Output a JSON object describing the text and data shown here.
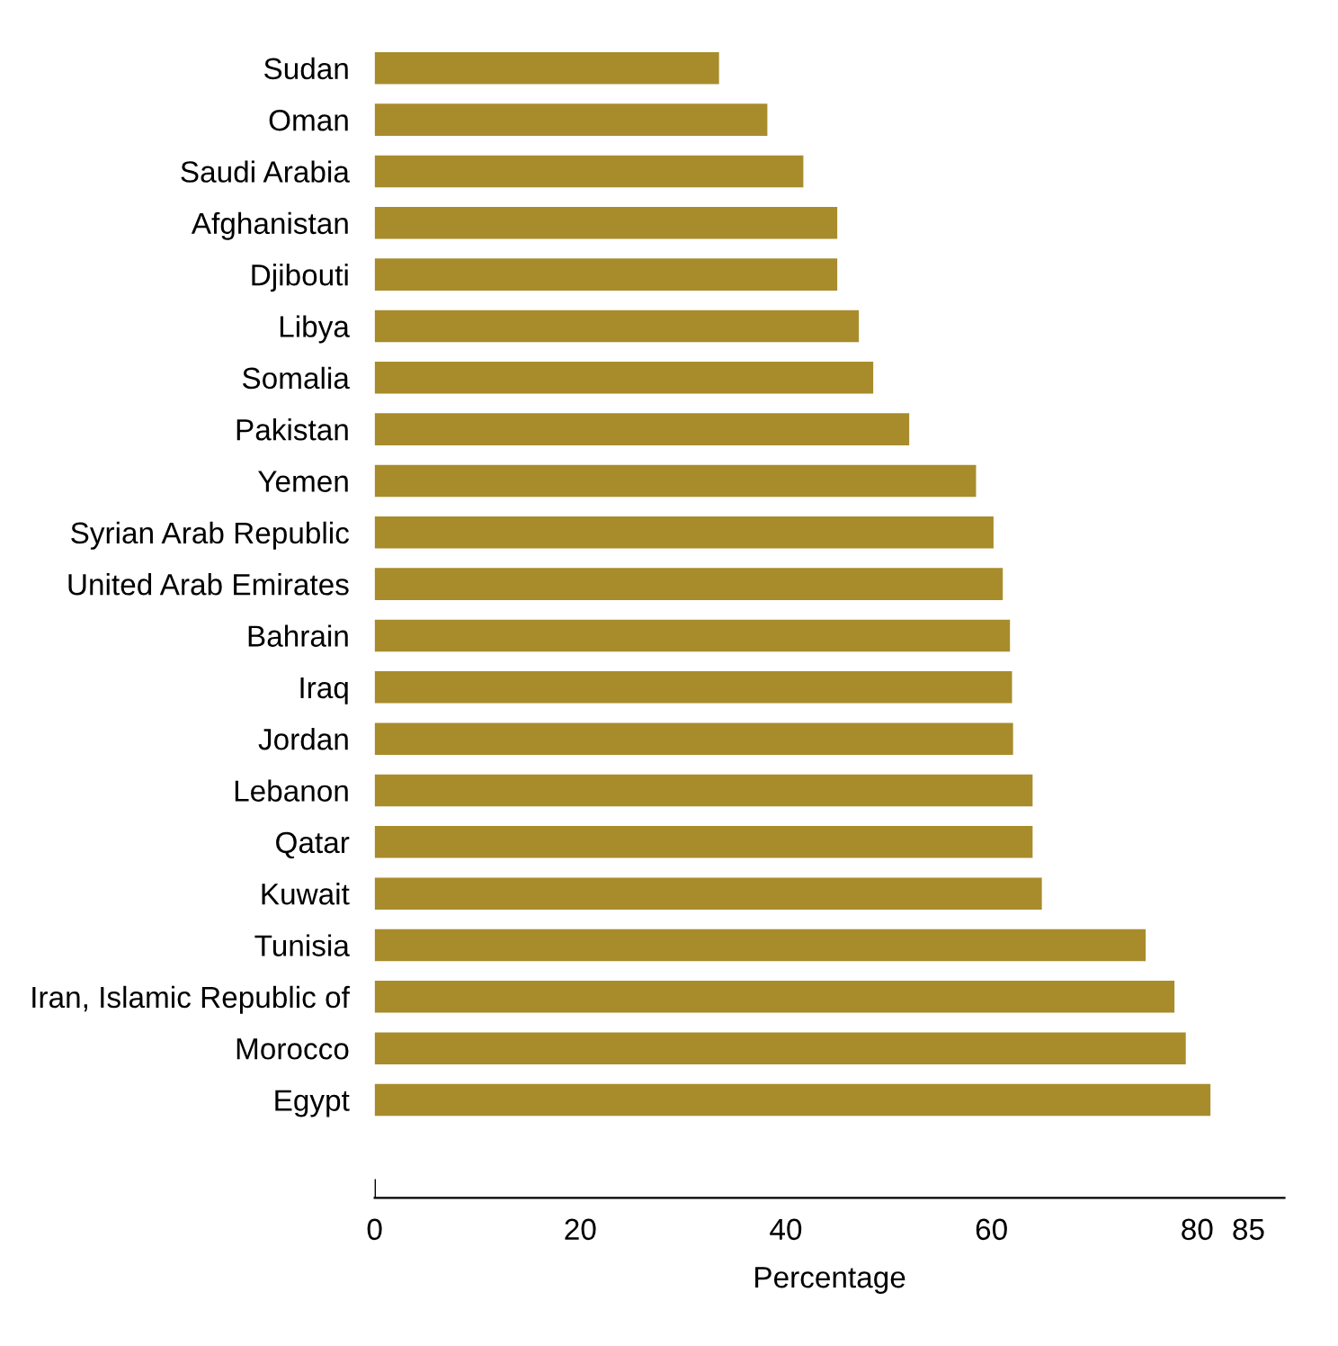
{
  "chart_data": {
    "type": "bar",
    "orientation": "horizontal",
    "xlabel": "Percentage",
    "categories": [
      "Sudan",
      "Oman",
      "Saudi Arabia",
      "Afghanistan",
      "Djibouti",
      "Libya",
      "Somalia",
      "Pakistan",
      "Yemen",
      "Syrian Arab Republic",
      "United Arab Emirates",
      "Bahrain",
      "Iraq",
      "Jordan",
      "Lebanon",
      "Qatar",
      "Kuwait",
      "Tunisia",
      "Iran, Islamic Republic of",
      "Morocco",
      "Egypt"
    ],
    "values": [
      33.5,
      38.2,
      41.7,
      45,
      45,
      47.1,
      48.5,
      52,
      58.5,
      60.2,
      61.1,
      61.8,
      62,
      62.1,
      64,
      64,
      64.9,
      75,
      77.8,
      78.9,
      81.3
    ],
    "color": "#a88c2c",
    "xlim": [
      0,
      88.5
    ],
    "xticks": [
      0,
      20,
      40,
      60,
      80,
      85
    ],
    "grid": false
  }
}
